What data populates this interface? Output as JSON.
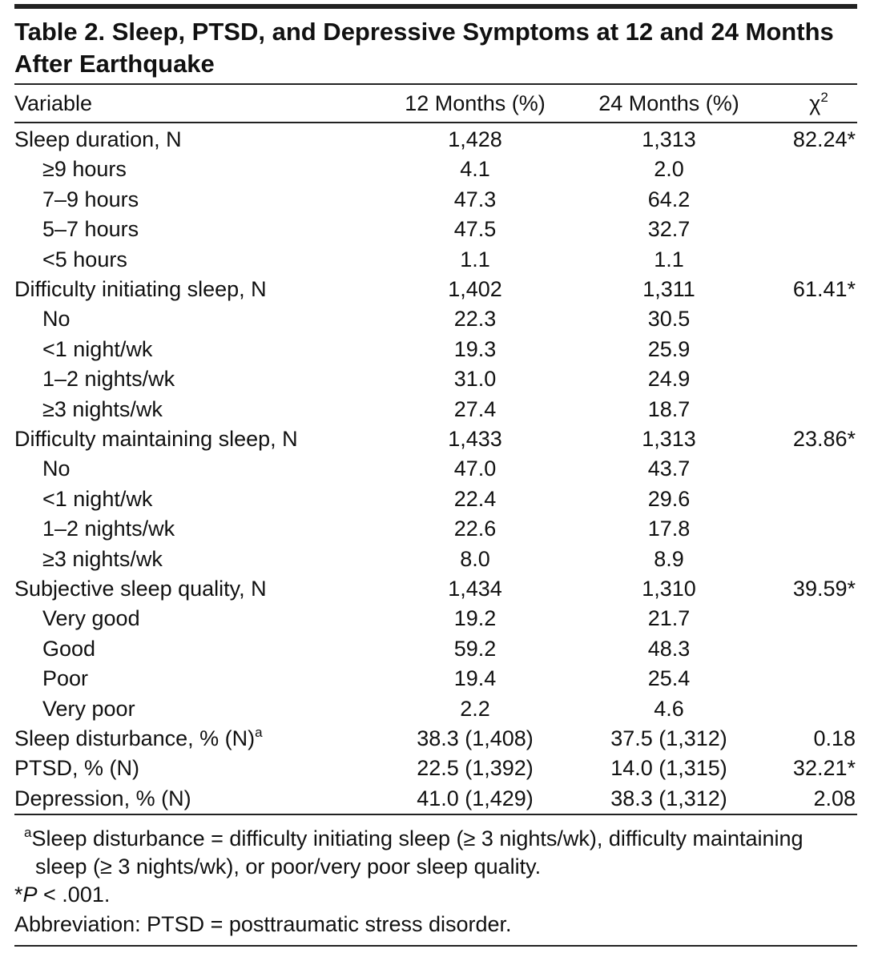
{
  "title": "Table 2. Sleep, PTSD, and Depressive Symptoms at 12 and 24 Months After Earthquake",
  "table": {
    "columns": {
      "variable": "Variable",
      "m12": "12 Months (%)",
      "m24": "24 Months (%)",
      "chi": {
        "symbol": "χ",
        "sup": "2"
      }
    },
    "groups": [
      {
        "label": "Sleep duration, N",
        "m12": "1,428",
        "m24": "1,313",
        "chi": "82.24*",
        "items": [
          [
            "≥9 hours",
            "4.1",
            "2.0"
          ],
          [
            "7–9 hours",
            "47.3",
            "64.2"
          ],
          [
            "5–7 hours",
            "47.5",
            "32.7"
          ],
          [
            "<5 hours",
            "1.1",
            "1.1"
          ]
        ]
      },
      {
        "label": "Difficulty initiating sleep, N",
        "m12": "1,402",
        "m24": "1,311",
        "chi": "61.41*",
        "items": [
          [
            "No",
            "22.3",
            "30.5"
          ],
          [
            "<1 night/wk",
            "19.3",
            "25.9"
          ],
          [
            "1–2 nights/wk",
            "31.0",
            "24.9"
          ],
          [
            "≥3 nights/wk",
            "27.4",
            "18.7"
          ]
        ]
      },
      {
        "label": "Difficulty maintaining sleep, N",
        "m12": "1,433",
        "m24": "1,313",
        "chi": "23.86*",
        "items": [
          [
            "No",
            "47.0",
            "43.7"
          ],
          [
            "<1 night/wk",
            "22.4",
            "29.6"
          ],
          [
            "1–2 nights/wk",
            "22.6",
            "17.8"
          ],
          [
            "≥3 nights/wk",
            "8.0",
            "8.9"
          ]
        ]
      },
      {
        "label": "Subjective sleep quality, N",
        "m12": "1,434",
        "m24": "1,310",
        "chi": "39.59*",
        "items": [
          [
            "Very good",
            "19.2",
            "21.7"
          ],
          [
            "Good",
            "59.2",
            "48.3"
          ],
          [
            "Poor",
            "19.4",
            "25.4"
          ],
          [
            "Very poor",
            "2.2",
            "4.6"
          ]
        ]
      },
      {
        "label": "Sleep disturbance, % (N)",
        "mark": "a",
        "m12": "38.3 (1,408)",
        "m24": "37.5 (1,312)",
        "chi": "0.18",
        "items": []
      },
      {
        "label": "PTSD, % (N)",
        "m12": "22.5 (1,392)",
        "m24": "14.0 (1,315)",
        "chi": "32.21*",
        "items": []
      },
      {
        "label": "Depression, % (N)",
        "m12": "41.0 (1,429)",
        "m24": "38.3 (1,312)",
        "chi": "2.08",
        "items": []
      }
    ]
  },
  "footnotes": {
    "a": {
      "mark": "a",
      "text": "Sleep disturbance = difficulty initiating sleep (≥ 3 nights/wk), difficulty maintaining sleep (≥ 3 nights/wk), or poor/very poor sleep quality."
    },
    "p": {
      "symbol": "*",
      "italic": "P",
      "text": " < .001."
    },
    "abbr": "Abbreviation: PTSD = posttraumatic stress disorder."
  }
}
